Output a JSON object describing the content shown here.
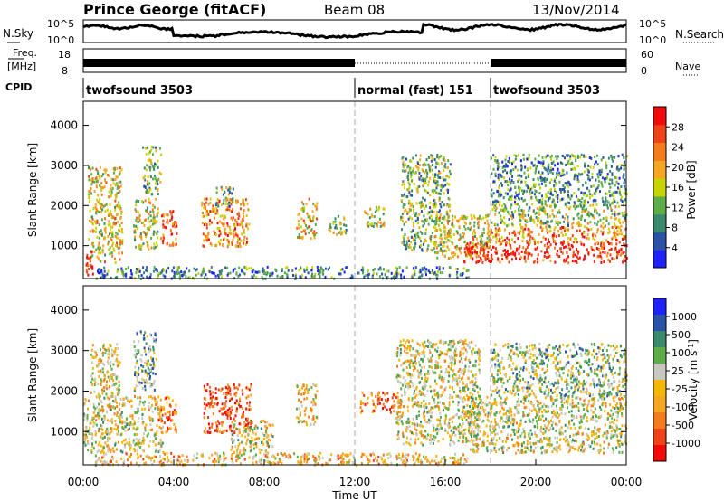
{
  "header": {
    "station": "Prince George (fitACF)",
    "beam": "Beam 08",
    "date": "13/Nov/2014"
  },
  "strip_labels": {
    "nsky": "N.Sky",
    "nsky_top": "10^5",
    "nsky_bottom": "10^0",
    "nsearch": "N.Search",
    "nsearch_top": "10^5",
    "nsearch_bottom": "10^0",
    "freq": "Freq.",
    "freq_unit": "[MHz]",
    "freq_top": "18",
    "freq_bottom": "8",
    "nave": "Nave",
    "nave_top": "60",
    "nave_bottom": "0",
    "cpid": "CPID"
  },
  "cpid_segments": [
    {
      "start": "00:00",
      "end": "12:00",
      "label": "twofsound 3503"
    },
    {
      "start": "12:00",
      "end": "18:00",
      "label": "normal (fast) 151"
    },
    {
      "start": "18:00",
      "end": "24:00",
      "label": "twofsound 3503"
    }
  ],
  "x_axis": {
    "label": "Time UT",
    "ticks": [
      "00:00",
      "04:00",
      "08:00",
      "12:00",
      "16:00",
      "20:00",
      "00:00"
    ],
    "range_hours": [
      0,
      24
    ]
  },
  "chart_data": [
    {
      "type": "heatmap",
      "panel": "power",
      "ylabel": "Slant Range [km]",
      "ylim": [
        180,
        4600
      ],
      "yticks": [
        1000,
        2000,
        3000,
        4000
      ],
      "colorbar_label": "Power [dB]",
      "colorbar_ticks": [
        "4",
        "8",
        "12",
        "16",
        "20",
        "24",
        "28"
      ],
      "colors": [
        "#1e22ff",
        "#2a53a8",
        "#3a8a6e",
        "#5cae48",
        "#c8d400",
        "#f5a623",
        "#f57c1b",
        "#ef4218",
        "#f50a0a"
      ],
      "regions": [
        {
          "t": [
            0.2,
            1.7
          ],
          "r": [
            600,
            3000
          ],
          "level": 0.55
        },
        {
          "t": [
            0.1,
            0.4
          ],
          "r": [
            300,
            900
          ],
          "level": 0.95
        },
        {
          "t": [
            2.2,
            3.3
          ],
          "r": [
            900,
            2200
          ],
          "level": 0.5
        },
        {
          "t": [
            2.6,
            3.4
          ],
          "r": [
            2300,
            3500
          ],
          "level": 0.4
        },
        {
          "t": [
            3.4,
            4.1
          ],
          "r": [
            1000,
            1900
          ],
          "level": 0.85
        },
        {
          "t": [
            5.2,
            7.3
          ],
          "r": [
            1000,
            2200
          ],
          "level": 0.7
        },
        {
          "t": [
            5.8,
            6.6
          ],
          "r": [
            2000,
            2500
          ],
          "level": 0.35
        },
        {
          "t": [
            9.4,
            10.3
          ],
          "r": [
            1200,
            2200
          ],
          "level": 0.6
        },
        {
          "t": [
            10.8,
            11.6
          ],
          "r": [
            1300,
            1800
          ],
          "level": 0.45
        },
        {
          "t": [
            12.4,
            13.3
          ],
          "r": [
            1500,
            2000
          ],
          "level": 0.5
        },
        {
          "t": [
            14.0,
            16.2
          ],
          "r": [
            900,
            3300
          ],
          "level": 0.4
        },
        {
          "t": [
            15.5,
            18.0
          ],
          "r": [
            700,
            1800
          ],
          "level": 0.55
        },
        {
          "t": [
            16.8,
            24.0
          ],
          "r": [
            600,
            1100
          ],
          "level": 0.9
        },
        {
          "t": [
            17.8,
            24.0
          ],
          "r": [
            1100,
            1500
          ],
          "level": 0.7
        },
        {
          "t": [
            18.0,
            24.0
          ],
          "r": [
            1500,
            2100
          ],
          "level": 0.45
        },
        {
          "t": [
            18.0,
            24.0
          ],
          "r": [
            2100,
            3300
          ],
          "level": 0.3
        },
        {
          "t": [
            0.5,
            17.0
          ],
          "r": [
            200,
            500
          ],
          "level": 0.25
        }
      ]
    },
    {
      "type": "heatmap",
      "panel": "velocity",
      "ylabel": "Slant Range [km]",
      "ylim": [
        180,
        4600
      ],
      "yticks": [
        1000,
        2000,
        3000,
        4000
      ],
      "colorbar_label": "Velocity [m s-1]",
      "colorbar_ticks": [
        "1000",
        "500",
        "100",
        "25",
        "-25",
        "-100",
        "-500",
        "-1000"
      ],
      "colors": [
        "#1e22ff",
        "#2a53a8",
        "#3a8a6e",
        "#5cae48",
        "#c8c8c0",
        "#f5b800",
        "#f5a623",
        "#f57c1b",
        "#ef4218",
        "#f50a0a"
      ],
      "regions": [
        {
          "t": [
            0.0,
            3.5
          ],
          "r": [
            500,
            1900
          ],
          "level": 0.5
        },
        {
          "t": [
            0.3,
            1.6
          ],
          "r": [
            1900,
            3200
          ],
          "level": 0.55
        },
        {
          "t": [
            2.2,
            3.2
          ],
          "r": [
            2000,
            3500
          ],
          "level": 0.35
        },
        {
          "t": [
            3.3,
            4.1
          ],
          "r": [
            1000,
            1900
          ],
          "level": 0.8
        },
        {
          "t": [
            5.3,
            7.4
          ],
          "r": [
            1000,
            2200
          ],
          "level": 0.85
        },
        {
          "t": [
            6.5,
            8.4
          ],
          "r": [
            500,
            1300
          ],
          "level": 0.5
        },
        {
          "t": [
            9.4,
            10.3
          ],
          "r": [
            1200,
            2200
          ],
          "level": 0.55
        },
        {
          "t": [
            12.2,
            14.0
          ],
          "r": [
            1500,
            2000
          ],
          "level": 0.75
        },
        {
          "t": [
            13.8,
            17.5
          ],
          "r": [
            700,
            3300
          ],
          "level": 0.5
        },
        {
          "t": [
            17.0,
            24.0
          ],
          "r": [
            500,
            1900
          ],
          "level": 0.5
        },
        {
          "t": [
            18.0,
            24.0
          ],
          "r": [
            1900,
            3200
          ],
          "level": 0.4
        },
        {
          "t": [
            0.5,
            17.0
          ],
          "r": [
            200,
            500
          ],
          "level": 0.6
        }
      ]
    }
  ]
}
